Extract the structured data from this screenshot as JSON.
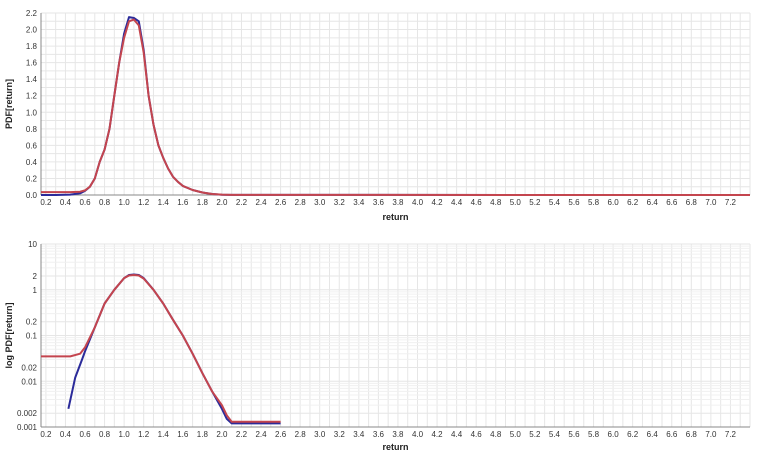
{
  "chart_data": [
    {
      "type": "line",
      "xlabel": "return",
      "ylabel": "PDF[return]",
      "xlim": [
        0.15,
        7.4
      ],
      "ylim": [
        0,
        2.2
      ],
      "yscale": "linear",
      "grid": true,
      "x_ticks": [
        "0.2",
        "0.4",
        "0.6",
        "0.8",
        "1.0",
        "1.2",
        "1.4",
        "1.6",
        "1.8",
        "2.0",
        "2.2",
        "2.4",
        "2.6",
        "2.8",
        "3.0",
        "3.2",
        "3.4",
        "3.6",
        "3.8",
        "4.0",
        "4.2",
        "4.4",
        "4.6",
        "4.8",
        "5.0",
        "5.2",
        "5.4",
        "5.6",
        "5.8",
        "6.0",
        "6.2",
        "6.4",
        "6.6",
        "6.8",
        "7.0",
        "7.2"
      ],
      "y_ticks": [
        "0.0",
        "0.2",
        "0.4",
        "0.6",
        "0.8",
        "1.0",
        "1.2",
        "1.4",
        "1.6",
        "1.8",
        "2.0",
        "2.2"
      ],
      "series": [
        {
          "color": "#2b2b9a",
          "points": [
            [
              0.15,
              0.0
            ],
            [
              0.3,
              0.0
            ],
            [
              0.45,
              0.005
            ],
            [
              0.55,
              0.02
            ],
            [
              0.6,
              0.05
            ],
            [
              0.65,
              0.1
            ],
            [
              0.7,
              0.2
            ],
            [
              0.75,
              0.4
            ],
            [
              0.8,
              0.55
            ],
            [
              0.85,
              0.8
            ],
            [
              0.9,
              1.2
            ],
            [
              0.95,
              1.6
            ],
            [
              1.0,
              1.95
            ],
            [
              1.05,
              2.15
            ],
            [
              1.1,
              2.14
            ],
            [
              1.15,
              2.1
            ],
            [
              1.2,
              1.75
            ],
            [
              1.25,
              1.2
            ],
            [
              1.3,
              0.85
            ],
            [
              1.35,
              0.6
            ],
            [
              1.4,
              0.45
            ],
            [
              1.45,
              0.32
            ],
            [
              1.5,
              0.22
            ],
            [
              1.55,
              0.16
            ],
            [
              1.6,
              0.11
            ],
            [
              1.7,
              0.06
            ],
            [
              1.8,
              0.03
            ],
            [
              1.9,
              0.012
            ],
            [
              2.0,
              0.004
            ],
            [
              2.1,
              0.0015
            ],
            [
              2.6,
              0.0012
            ],
            [
              7.4,
              0.0
            ]
          ]
        },
        {
          "color": "#c4454e",
          "points": [
            [
              0.15,
              0.035
            ],
            [
              0.45,
              0.035
            ],
            [
              0.55,
              0.04
            ],
            [
              0.6,
              0.055
            ],
            [
              0.65,
              0.1
            ],
            [
              0.7,
              0.2
            ],
            [
              0.75,
              0.4
            ],
            [
              0.8,
              0.55
            ],
            [
              0.85,
              0.8
            ],
            [
              0.9,
              1.2
            ],
            [
              0.95,
              1.6
            ],
            [
              1.0,
              1.9
            ],
            [
              1.05,
              2.1
            ],
            [
              1.1,
              2.12
            ],
            [
              1.15,
              2.05
            ],
            [
              1.2,
              1.72
            ],
            [
              1.25,
              1.2
            ],
            [
              1.3,
              0.85
            ],
            [
              1.35,
              0.6
            ],
            [
              1.4,
              0.45
            ],
            [
              1.45,
              0.32
            ],
            [
              1.5,
              0.22
            ],
            [
              1.55,
              0.16
            ],
            [
              1.6,
              0.11
            ],
            [
              1.7,
              0.06
            ],
            [
              1.8,
              0.03
            ],
            [
              1.9,
              0.012
            ],
            [
              2.0,
              0.005
            ],
            [
              2.1,
              0.0015
            ],
            [
              2.6,
              0.0012
            ],
            [
              7.4,
              0.0
            ]
          ]
        }
      ]
    },
    {
      "type": "line",
      "xlabel": "return",
      "ylabel": "log PDF[return]",
      "xlim": [
        0.15,
        7.4
      ],
      "ylim": [
        0.001,
        10
      ],
      "yscale": "log",
      "grid": true,
      "x_ticks": [
        "0.2",
        "0.4",
        "0.6",
        "0.8",
        "1.0",
        "1.2",
        "1.4",
        "1.6",
        "1.8",
        "2.0",
        "2.2",
        "2.4",
        "2.6",
        "2.8",
        "3.0",
        "3.2",
        "3.4",
        "3.6",
        "3.8",
        "4.0",
        "4.2",
        "4.4",
        "4.6",
        "4.8",
        "5.0",
        "5.2",
        "5.4",
        "5.6",
        "5.8",
        "6.0",
        "6.2",
        "6.4",
        "6.6",
        "6.8",
        "7.0",
        "7.2"
      ],
      "y_ticks": [
        "0.001",
        "0.002",
        "0.01",
        "0.02",
        "0.1",
        "0.2",
        "1",
        "2",
        "10"
      ],
      "series": [
        {
          "color": "#2b2b9a",
          "points": [
            [
              0.43,
              0.0025
            ],
            [
              0.5,
              0.012
            ],
            [
              0.57,
              0.03
            ],
            [
              0.6,
              0.045
            ],
            [
              0.7,
              0.15
            ],
            [
              0.8,
              0.5
            ],
            [
              0.9,
              1.0
            ],
            [
              1.0,
              1.8
            ],
            [
              1.05,
              2.1
            ],
            [
              1.1,
              2.15
            ],
            [
              1.15,
              2.1
            ],
            [
              1.2,
              1.8
            ],
            [
              1.3,
              1.0
            ],
            [
              1.4,
              0.5
            ],
            [
              1.5,
              0.22
            ],
            [
              1.6,
              0.1
            ],
            [
              1.7,
              0.04
            ],
            [
              1.8,
              0.015
            ],
            [
              1.9,
              0.006
            ],
            [
              2.0,
              0.0025
            ],
            [
              2.05,
              0.0015
            ],
            [
              2.1,
              0.0012
            ],
            [
              2.6,
              0.0012
            ]
          ]
        },
        {
          "color": "#c4454e",
          "points": [
            [
              0.15,
              0.035
            ],
            [
              0.45,
              0.035
            ],
            [
              0.55,
              0.04
            ],
            [
              0.6,
              0.055
            ],
            [
              0.7,
              0.15
            ],
            [
              0.8,
              0.5
            ],
            [
              0.9,
              1.0
            ],
            [
              1.0,
              1.8
            ],
            [
              1.05,
              2.05
            ],
            [
              1.1,
              2.1
            ],
            [
              1.15,
              2.05
            ],
            [
              1.2,
              1.75
            ],
            [
              1.3,
              1.0
            ],
            [
              1.4,
              0.5
            ],
            [
              1.5,
              0.22
            ],
            [
              1.6,
              0.1
            ],
            [
              1.7,
              0.04
            ],
            [
              1.8,
              0.015
            ],
            [
              1.9,
              0.006
            ],
            [
              2.0,
              0.003
            ],
            [
              2.05,
              0.0018
            ],
            [
              2.1,
              0.0013
            ],
            [
              2.6,
              0.0013
            ]
          ]
        }
      ]
    }
  ]
}
